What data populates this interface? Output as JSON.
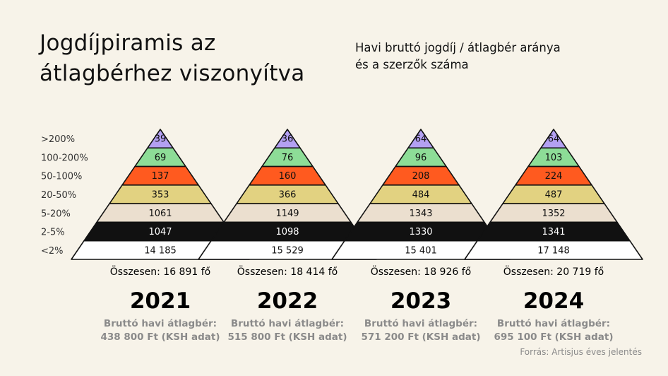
{
  "header": {
    "title": "Jogdíjpiramis az átlagbérhez viszonyítva",
    "subtitle_line1": "Havi bruttó jogdíj / átlagbér aránya",
    "subtitle_line2": "és a szerzők száma"
  },
  "source": "Forrás: Artisjus éves jelentés",
  "chart_data": {
    "type": "pyramid",
    "levels": [
      ">200%",
      "100-200%",
      "50-100%",
      "20-50%",
      "5-20%",
      "2-5%",
      "<2%"
    ],
    "level_colors": [
      "#b3a0f2",
      "#8ddd97",
      "#ff5a1f",
      "#e2d281",
      "#ebdfcf",
      "#111111",
      "#ffffff"
    ],
    "level_text_colors": [
      "#111111",
      "#111111",
      "#111111",
      "#111111",
      "#111111",
      "#ffffff",
      "#111111"
    ],
    "years": [
      {
        "year": "2021",
        "values": [
          "39",
          "69",
          "137",
          "353",
          "1061",
          "1047",
          "14 185"
        ],
        "total": "Összesen: 16 891 fő",
        "wage_label": "Bruttó havi átlagbér:",
        "wage_value": "438 800 Ft (KSH adat)"
      },
      {
        "year": "2022",
        "values": [
          "36",
          "76",
          "160",
          "366",
          "1149",
          "1098",
          "15 529"
        ],
        "total": "Összesen: 18 414 fő",
        "wage_label": "Bruttó havi átlagbér:",
        "wage_value": "515 800 Ft (KSH adat)"
      },
      {
        "year": "2023",
        "values": [
          "64",
          "96",
          "208",
          "484",
          "1343",
          "1330",
          "15 401"
        ],
        "total": "Összesen: 18 926 fő",
        "wage_label": "Bruttó havi átlagbér:",
        "wage_value": "571 200 Ft (KSH adat)"
      },
      {
        "year": "2024",
        "values": [
          "64",
          "103",
          "224",
          "487",
          "1352",
          "1341",
          "17 148"
        ],
        "total": "Összesen: 20 719 fő",
        "wage_label": "Bruttó havi átlagbér:",
        "wage_value": "695 100 Ft (KSH adat)"
      }
    ]
  }
}
